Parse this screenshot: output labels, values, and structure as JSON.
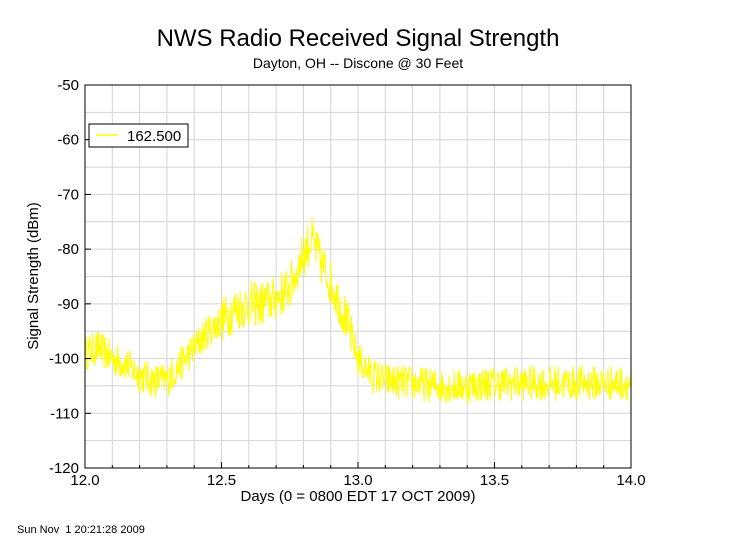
{
  "chart_data": {
    "type": "line",
    "title": "NWS Radio Received Signal Strength",
    "subtitle": "Dayton, OH -- Discone @ 30 Feet",
    "xlabel": "Days (0 = 0800 EDT 17 OCT 2009)",
    "ylabel": "Signal Strength (dBm)",
    "xlim": [
      12.0,
      14.0
    ],
    "ylim": [
      -120,
      -50
    ],
    "x_ticks": [
      "12.0",
      "12.5",
      "13.0",
      "13.5",
      "14.0"
    ],
    "x_tick_values": [
      12.0,
      12.5,
      13.0,
      13.5,
      14.0
    ],
    "y_ticks": [
      "-50",
      "-60",
      "-70",
      "-80",
      "-90",
      "-100",
      "-110",
      "-120"
    ],
    "y_tick_values": [
      -50,
      -60,
      -70,
      -80,
      -90,
      -100,
      -110,
      -120
    ],
    "grid": true,
    "legend_position": "top-left",
    "series": [
      {
        "name": "162.500",
        "color": "#ffff00",
        "x": [
          12.0,
          12.05,
          12.1,
          12.15,
          12.2,
          12.25,
          12.3,
          12.35,
          12.4,
          12.45,
          12.5,
          12.55,
          12.6,
          12.65,
          12.7,
          12.75,
          12.8,
          12.83,
          12.86,
          12.9,
          12.95,
          13.0,
          13.05,
          13.1,
          13.2,
          13.3,
          13.4,
          13.5,
          13.6,
          13.7,
          13.8,
          13.9,
          14.0
        ],
        "values": [
          -99,
          -98,
          -100,
          -101,
          -103,
          -104,
          -104,
          -101,
          -98,
          -95,
          -93,
          -91,
          -90,
          -90,
          -89,
          -87,
          -81,
          -78,
          -82,
          -86,
          -92,
          -100,
          -103,
          -104,
          -104.5,
          -105,
          -105,
          -104.5,
          -104.5,
          -104.5,
          -104.5,
          -104.5,
          -104.5
        ]
      }
    ]
  },
  "footer_timestamp": "Sun Nov  1 20:21:28 2009"
}
